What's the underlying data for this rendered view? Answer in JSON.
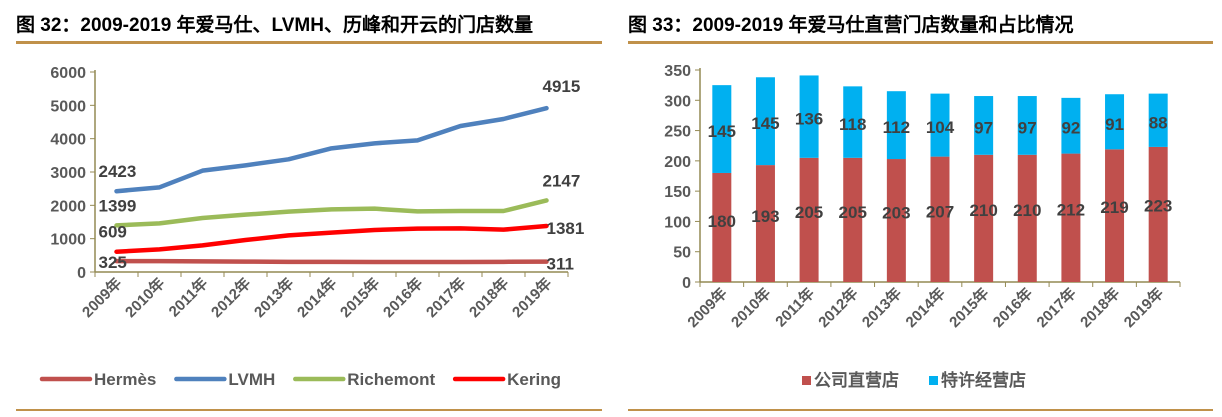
{
  "left": {
    "title": "图 32：2009-2019 年爱马仕、LVMH、历峰和开云的门店数量"
  },
  "right": {
    "title": "图 33：2009-2019 年爱马仕直营门店数量和占比情况"
  },
  "chart_data": [
    {
      "type": "line",
      "title": "图 32：2009-2019 年爱马仕、LVMH、历峰和开云的门店数量",
      "categories": [
        "2009年",
        "2010年",
        "2011年",
        "2012年",
        "2013年",
        "2014年",
        "2015年",
        "2016年",
        "2017年",
        "2018年",
        "2019年"
      ],
      "ylim": [
        0,
        6000
      ],
      "yticks": [
        0,
        1000,
        2000,
        3000,
        4000,
        5000,
        6000
      ],
      "grid": false,
      "legend": "bottom",
      "series": [
        {
          "name": "Hermès",
          "color": "#c0504d",
          "values": [
            325,
            326,
            320,
            312,
            305,
            305,
            300,
            300,
            300,
            305,
            311
          ],
          "labels": {
            "first": "325",
            "last": "311"
          }
        },
        {
          "name": "LVMH",
          "color": "#4f81bd",
          "values": [
            2423,
            2540,
            3040,
            3200,
            3380,
            3710,
            3860,
            3950,
            4380,
            4590,
            4915
          ],
          "labels": {
            "first": "2423",
            "last": "4915"
          }
        },
        {
          "name": "Richemont",
          "color": "#9bbb59",
          "values": [
            1399,
            1460,
            1620,
            1720,
            1810,
            1880,
            1900,
            1820,
            1830,
            1830,
            2147
          ],
          "labels": {
            "first": "1399",
            "last": "2147"
          }
        },
        {
          "name": "Kering",
          "color": "#ff0000",
          "values": [
            609,
            680,
            800,
            960,
            1100,
            1180,
            1260,
            1300,
            1310,
            1270,
            1381
          ],
          "labels": {
            "first": "609",
            "last": "1381"
          }
        }
      ]
    },
    {
      "type": "bar",
      "stacked": true,
      "title": "图 33：2009-2019 年爱马仕直营门店数量和占比情况",
      "categories": [
        "2009年",
        "2010年",
        "2011年",
        "2012年",
        "2013年",
        "2014年",
        "2015年",
        "2016年",
        "2017年",
        "2018年",
        "2019年"
      ],
      "ylim": [
        0,
        350
      ],
      "yticks": [
        0,
        50,
        100,
        150,
        200,
        250,
        300,
        350
      ],
      "grid": false,
      "legend": "bottom",
      "series": [
        {
          "name": "公司直营店",
          "color": "#c0504d",
          "values": [
            180,
            193,
            205,
            205,
            203,
            207,
            210,
            210,
            212,
            219,
            223
          ]
        },
        {
          "name": "特许经营店",
          "color": "#00b0f0",
          "values": [
            145,
            145,
            136,
            118,
            112,
            104,
            97,
            97,
            92,
            91,
            88
          ]
        }
      ]
    }
  ]
}
